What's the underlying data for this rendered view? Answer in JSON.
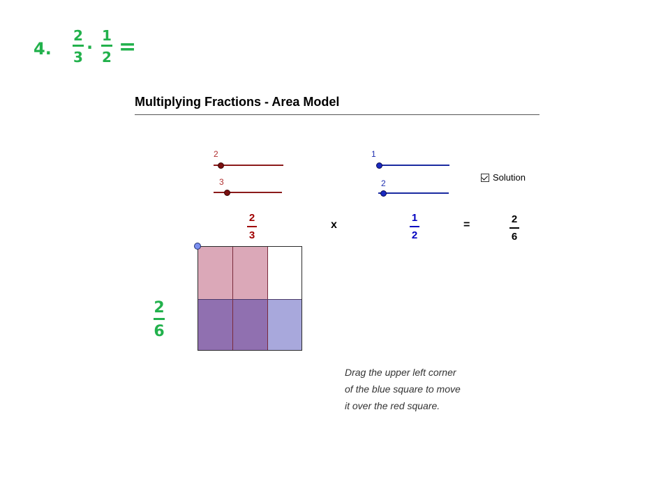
{
  "problem": {
    "number": "4.",
    "fraction_a": {
      "numerator": "2",
      "denominator": "3"
    },
    "operator": "·",
    "fraction_b": {
      "numerator": "1",
      "denominator": "2"
    },
    "equals": "="
  },
  "applet": {
    "title": "Multiplying Fractions - Area Model",
    "sliders": {
      "red_numerator": {
        "value": "2",
        "color": "#8b1a1a"
      },
      "red_denominator": {
        "value": "3",
        "color": "#8b1a1a"
      },
      "blue_numerator": {
        "value": "1",
        "color": "#1a2aa0"
      },
      "blue_denominator": {
        "value": "2",
        "color": "#1a2aa0"
      }
    },
    "solution_checkbox": {
      "label": "Solution",
      "checked": true
    },
    "equation": {
      "red_fraction": {
        "numerator": "2",
        "denominator": "3",
        "color": "#a00000"
      },
      "times": "x",
      "blue_fraction": {
        "numerator": "1",
        "denominator": "2",
        "color": "#0000c0"
      },
      "equals": "=",
      "result_fraction": {
        "numerator": "2",
        "denominator": "6",
        "color": "#000000"
      }
    },
    "side_answer": {
      "numerator": "2",
      "denominator": "6",
      "color": "#22b14c"
    },
    "grid_colors": {
      "red_only": "#dba8b8",
      "overlap": "#9070b0",
      "blue_only": "#a8a8dc",
      "empty": "#ffffff"
    },
    "instructions": [
      "Drag the upper left corner",
      "of the blue square to move",
      "it over the red square."
    ]
  }
}
